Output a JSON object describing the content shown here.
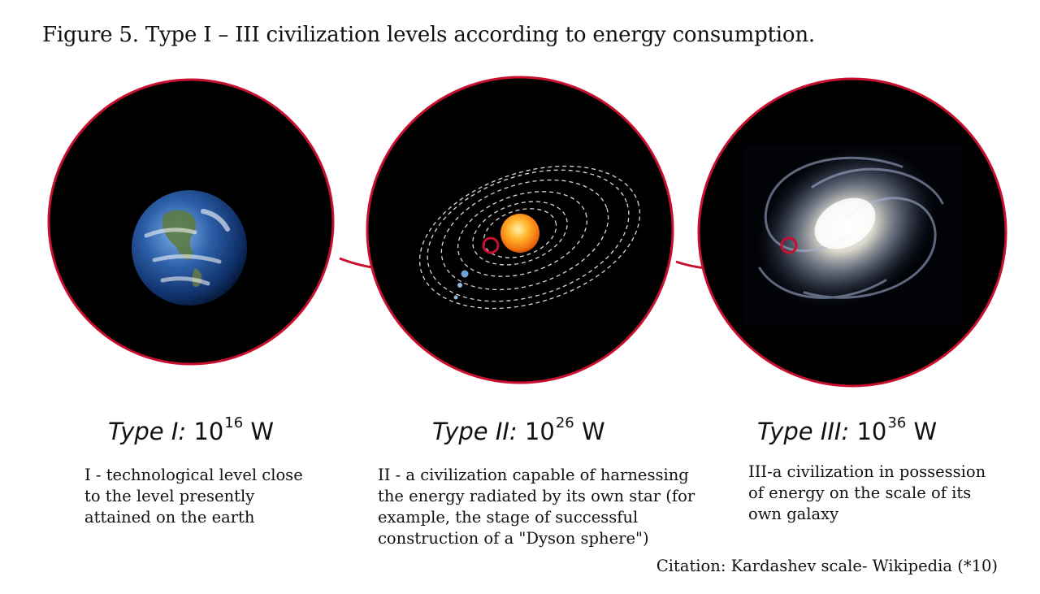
{
  "figure_title": "Figure 5. Type I – III civilization levels according to energy consumption.",
  "types": [
    {
      "name": "Type I:",
      "base": "10",
      "exp": "16",
      "unit": "W",
      "lines": [
        "I - technological level close",
        "to the level presently",
        "attained on the earth"
      ]
    },
    {
      "name": "Type II:",
      "base": "10",
      "exp": "26",
      "unit": "W",
      "lines": [
        "II - a civilization capable of harnessing",
        "the energy radiated by its own star (for",
        "example, the stage of successful",
        "construction of a \"Dyson sphere\")"
      ]
    },
    {
      "name": "Type III:",
      "base": "10",
      "exp": "36",
      "unit": "W",
      "lines": [
        "III-a civilization in possession",
        "of energy on the scale of its",
        "own galaxy"
      ]
    }
  ],
  "citation": "Citation: Kardashev scale- Wikipedia (*10)",
  "colors": {
    "ring": "#c8102e",
    "space": "#000000",
    "sun": "#ff9a1a"
  },
  "icons": [
    "earth-image",
    "solar-system-image",
    "galaxy-image",
    "magnifier-ring-icon"
  ]
}
